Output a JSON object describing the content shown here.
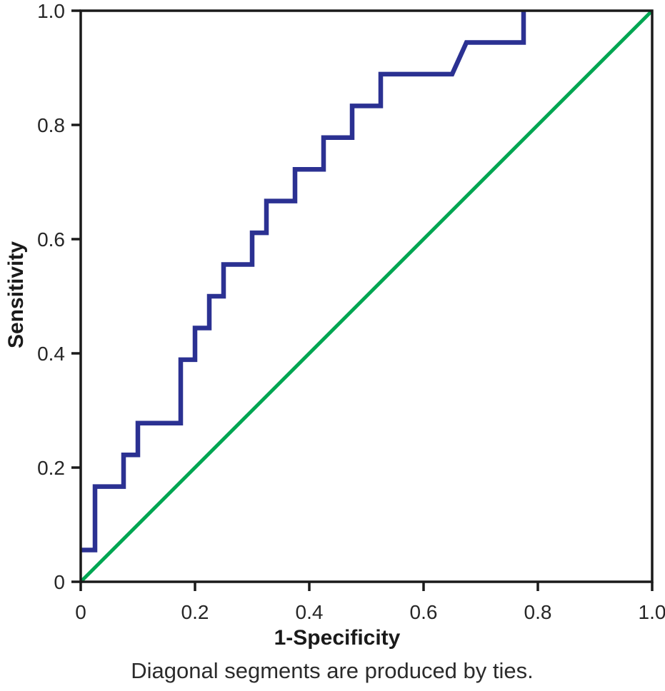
{
  "chart_data": {
    "type": "line",
    "title": "",
    "xlabel": "1-Specificity",
    "ylabel": "Sensitivity",
    "caption": "Diagonal segments are produced by ties.",
    "xlim": [
      0,
      1.0
    ],
    "ylim": [
      0,
      1.0
    ],
    "grid": false,
    "legend": "none",
    "x_ticks": [
      0,
      0.2,
      0.4,
      0.6,
      0.8,
      1.0
    ],
    "x_tick_labels": [
      "0",
      "0.2",
      "0.4",
      "0.6",
      "0.8",
      "1.0"
    ],
    "y_ticks": [
      0,
      0.2,
      0.4,
      0.6,
      0.8,
      1.0
    ],
    "y_tick_labels": [
      "0",
      "0.2",
      "0.4",
      "0.6",
      "0.8",
      "1.0"
    ],
    "series": [
      {
        "name": "Reference line",
        "slug": "reference-line",
        "color": "#00a652",
        "stroke_width": 5,
        "points": [
          [
            0,
            0
          ],
          [
            1.0,
            1.0
          ]
        ]
      },
      {
        "name": "ROC curve",
        "slug": "roc-curve",
        "color": "#2b3192",
        "stroke_width": 6.5,
        "points": [
          [
            0,
            0.0556
          ],
          [
            0.025,
            0.0556
          ],
          [
            0.025,
            0.1667
          ],
          [
            0.075,
            0.1667
          ],
          [
            0.075,
            0.2222
          ],
          [
            0.1,
            0.2222
          ],
          [
            0.1,
            0.2778
          ],
          [
            0.175,
            0.2778
          ],
          [
            0.175,
            0.3889
          ],
          [
            0.2,
            0.3889
          ],
          [
            0.2,
            0.4444
          ],
          [
            0.225,
            0.4444
          ],
          [
            0.225,
            0.5
          ],
          [
            0.25,
            0.5
          ],
          [
            0.25,
            0.5556
          ],
          [
            0.3,
            0.5556
          ],
          [
            0.3,
            0.6111
          ],
          [
            0.325,
            0.6111
          ],
          [
            0.325,
            0.6667
          ],
          [
            0.375,
            0.6667
          ],
          [
            0.375,
            0.7222
          ],
          [
            0.425,
            0.7222
          ],
          [
            0.425,
            0.7778
          ],
          [
            0.475,
            0.7778
          ],
          [
            0.475,
            0.8333
          ],
          [
            0.525,
            0.8333
          ],
          [
            0.525,
            0.8889
          ],
          [
            0.65,
            0.8889
          ],
          [
            0.675,
            0.9444
          ],
          [
            0.775,
            0.9444
          ],
          [
            0.775,
            1.0
          ]
        ]
      }
    ],
    "colors": {
      "frame": "#1a1a1a",
      "tick_text": "#262626",
      "axis_title_text": "#1a1a1a",
      "caption_text": "#2b2b2b",
      "background": "#ffffff"
    }
  }
}
